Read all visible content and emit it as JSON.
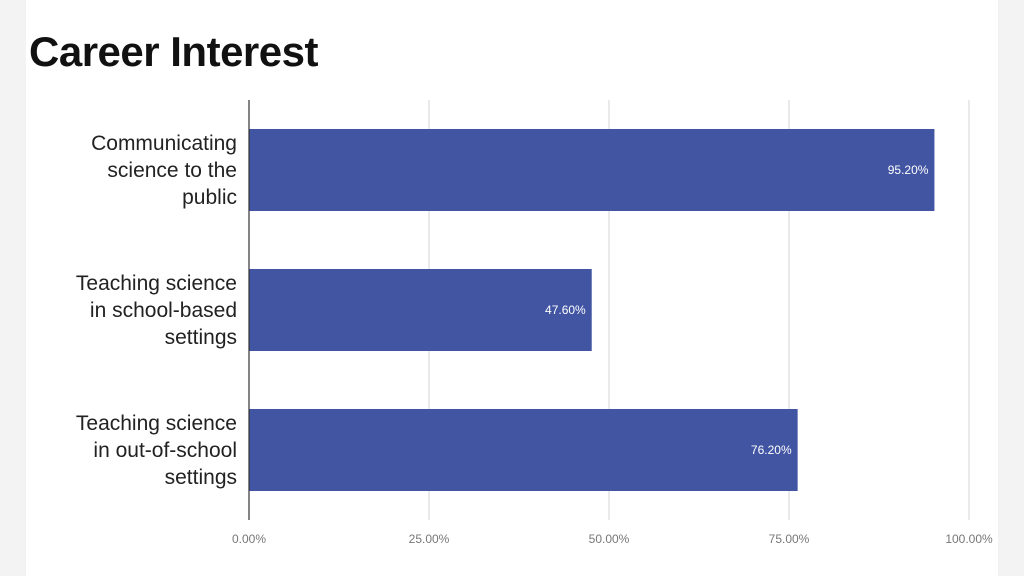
{
  "title": "Career Interest",
  "chart_data": {
    "type": "bar",
    "orientation": "horizontal",
    "categories": [
      [
        "Communicating",
        "science to the",
        "public"
      ],
      [
        "Teaching science",
        "in school-based",
        "settings"
      ],
      [
        "Teaching science",
        "in out-of-school",
        "settings"
      ]
    ],
    "values": [
      95.2,
      47.6,
      76.2
    ],
    "value_labels": [
      "95.20%",
      "47.60%",
      "76.20%"
    ],
    "xlim": [
      0,
      100
    ],
    "x_ticks": [
      0,
      25,
      50,
      75,
      100
    ],
    "x_tick_labels": [
      "0.00%",
      "25.00%",
      "50.00%",
      "75.00%",
      "100.00%"
    ],
    "grid": true,
    "legend": "none",
    "bar_color": "#4255a3"
  }
}
